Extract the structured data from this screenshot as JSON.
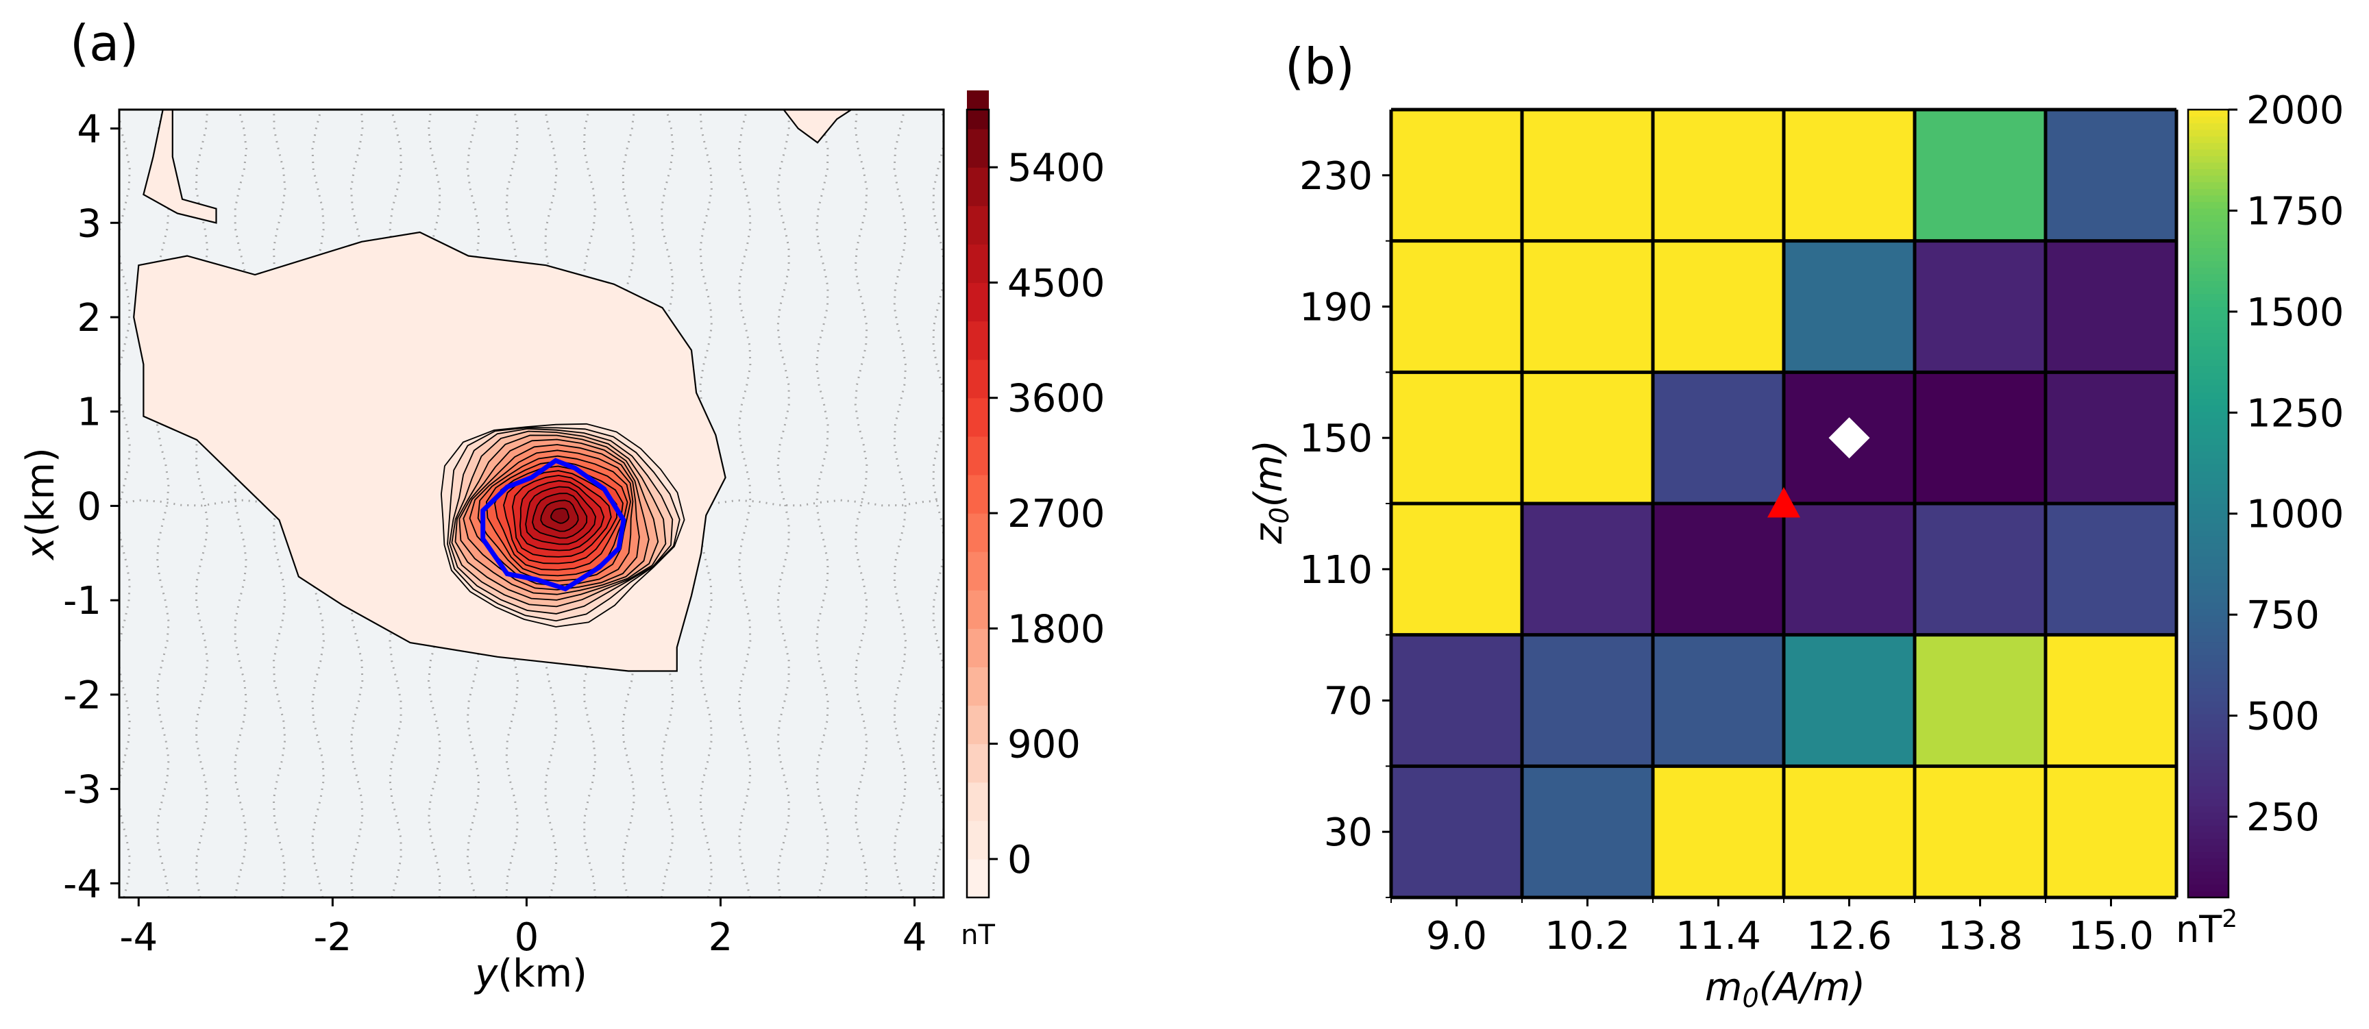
{
  "chart_data": [
    {
      "panel_label": "(a)",
      "type": "heatmap",
      "subtype": "filled contour map",
      "xlabel_var": "y",
      "xlabel_unit": "(km)",
      "ylabel_var": "x",
      "ylabel_unit": "(km)",
      "xlim": [
        -4.2,
        4.3
      ],
      "ylim": [
        -4.15,
        4.2
      ],
      "xticks": [
        -4,
        -2,
        0,
        2,
        4
      ],
      "xtick_labels": [
        "-4",
        "-2",
        "0",
        "2",
        "4"
      ],
      "yticks": [
        4,
        3,
        2,
        1,
        0,
        -1,
        -2,
        -3,
        -4
      ],
      "ytick_labels": [
        "4",
        "3",
        "2",
        "1",
        "0",
        "-1",
        "-2",
        "-3",
        "-4"
      ],
      "colormap": "Reds",
      "colorbar_range": [
        -300,
        5850
      ],
      "colorbar_ticks": [
        5400,
        4500,
        3600,
        2700,
        1800,
        900,
        0
      ],
      "colorbar_tick_labels": [
        "5400",
        "4500",
        "3600",
        "2700",
        "1800",
        "900",
        "0"
      ],
      "colorbar_unit": "nT",
      "anomaly_peak_center": [
        0.35,
        -0.1
      ],
      "anomaly_peak_value": 5600,
      "source_outline_color": "#0000ff",
      "source_outline": [
        [
          -0.45,
          -0.05
        ],
        [
          -0.2,
          0.2
        ],
        [
          0.05,
          0.3
        ],
        [
          0.3,
          0.48
        ],
        [
          0.5,
          0.4
        ],
        [
          0.8,
          0.18
        ],
        [
          1.0,
          -0.15
        ],
        [
          0.95,
          -0.45
        ],
        [
          0.75,
          -0.65
        ],
        [
          0.4,
          -0.88
        ],
        [
          0.1,
          -0.78
        ],
        [
          -0.2,
          -0.72
        ],
        [
          -0.45,
          -0.35
        ]
      ],
      "survey_lines_style": "dotted grey"
    },
    {
      "panel_label": "(b)",
      "type": "heatmap",
      "xlabel_var": "m",
      "xlabel_sub": "0",
      "xlabel_unit": "(A/m)",
      "ylabel_var": "z",
      "ylabel_sub": "0",
      "ylabel_unit": "(m)",
      "x_categories": [
        "9.0",
        "10.2",
        "11.4",
        "12.6",
        "13.8",
        "15.0"
      ],
      "y_categories": [
        "30",
        "70",
        "110",
        "150",
        "190",
        "230"
      ],
      "values": [
        [
          420,
          680,
          2000,
          2000,
          2000,
          2000
        ],
        [
          400,
          600,
          640,
          1080,
          1880,
          2000
        ],
        [
          2000,
          300,
          80,
          230,
          420,
          520
        ],
        [
          2000,
          2000,
          510,
          70,
          50,
          180
        ],
        [
          2000,
          2000,
          2000,
          820,
          270,
          180
        ],
        [
          2000,
          2000,
          2000,
          2000,
          1600,
          650
        ]
      ],
      "values_note": "rows from z0=30 (bottom) to z0=230 (top)",
      "colormap": "viridis",
      "colorbar_range": [
        50,
        2000
      ],
      "colorbar_ticks": [
        2000,
        1750,
        1500,
        1250,
        1000,
        750,
        500,
        250
      ],
      "colorbar_tick_labels": [
        "2000",
        "1750",
        "1500",
        "1250",
        "1000",
        "750",
        "500",
        "250"
      ],
      "colorbar_unit_base": "nT",
      "colorbar_unit_sup": "2",
      "markers": [
        {
          "shape": "diamond",
          "color": "#ffffff",
          "m0": 12.6,
          "z0": 150
        },
        {
          "shape": "triangle",
          "color": "#ff0000",
          "m0": 12.0,
          "z0": 130
        }
      ]
    }
  ]
}
